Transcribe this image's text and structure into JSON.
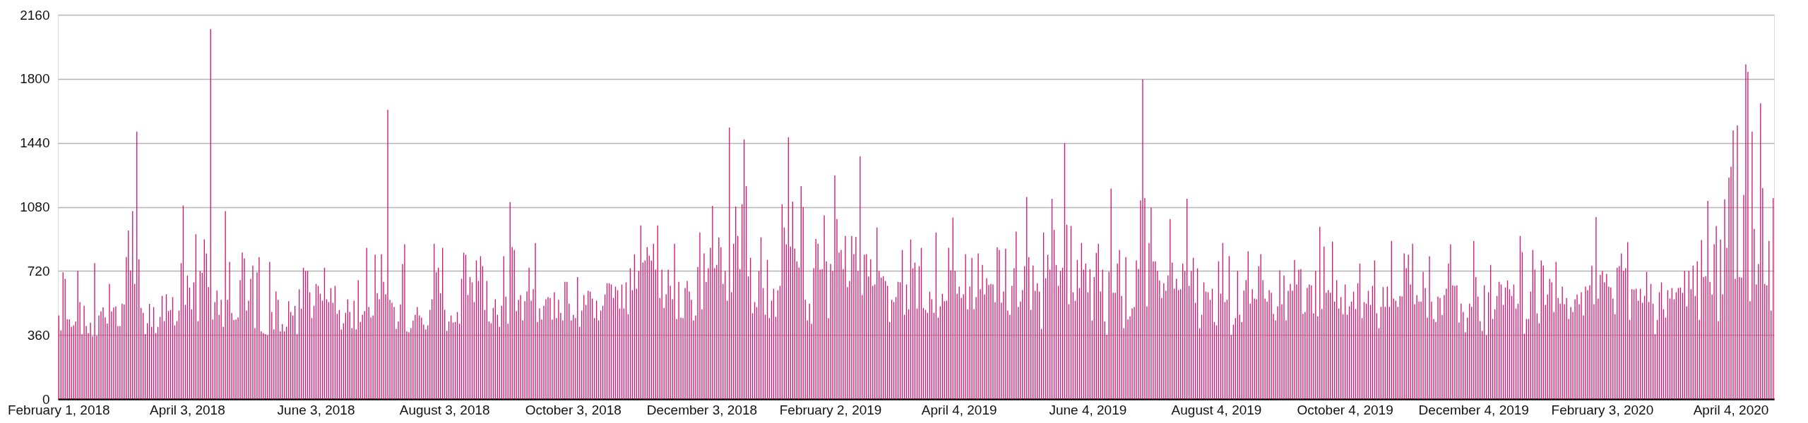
{
  "chart_data": {
    "type": "bar",
    "categories": [
      "February 1, 2018",
      null,
      null,
      null,
      null,
      null,
      null,
      null,
      null,
      null,
      null,
      null,
      null,
      null,
      null,
      null,
      null,
      null,
      null,
      null,
      null,
      null,
      null,
      null,
      null,
      null,
      null,
      null,
      null,
      null,
      null,
      null,
      null,
      null,
      null,
      null,
      null,
      null,
      null,
      null,
      null,
      null,
      null,
      null,
      null,
      null,
      null,
      null,
      null,
      null,
      null,
      null,
      null,
      null,
      null,
      null,
      null,
      null,
      null,
      null,
      null,
      "April 3, 2018",
      null,
      null,
      null,
      null,
      null,
      null,
      null,
      null,
      null,
      null,
      null,
      null,
      null,
      null,
      null,
      null,
      null,
      null,
      null,
      null,
      null,
      null,
      null,
      null,
      null,
      null,
      null,
      null,
      null,
      null,
      null,
      null,
      null,
      null,
      null,
      null,
      null,
      null,
      null,
      null,
      null,
      null,
      null,
      null,
      null,
      null,
      null,
      null,
      null,
      null,
      null,
      null,
      null,
      null,
      null,
      null,
      null,
      null,
      null,
      null,
      "June 3, 2018",
      null,
      null,
      null,
      null,
      null,
      null,
      null,
      null,
      null,
      null,
      null,
      null,
      null,
      null,
      null,
      null,
      null,
      null,
      null,
      null,
      null,
      null,
      null,
      null,
      null,
      null,
      null,
      null,
      null,
      null,
      null,
      null,
      null,
      null,
      null,
      null,
      null,
      null,
      null,
      null,
      null,
      null,
      null,
      null,
      null,
      null,
      null,
      null,
      null,
      null,
      null,
      null,
      null,
      null,
      null,
      null,
      null,
      null,
      null,
      null,
      "August 3, 2018",
      null,
      null,
      null,
      null,
      null,
      null,
      null,
      null,
      null,
      null,
      null,
      null,
      null,
      null,
      null,
      null,
      null,
      null,
      null,
      null,
      null,
      null,
      null,
      null,
      null,
      null,
      null,
      null,
      null,
      null,
      null,
      null,
      null,
      null,
      null,
      null,
      null,
      null,
      null,
      null,
      null,
      null,
      null,
      null,
      null,
      null,
      null,
      null,
      null,
      null,
      null,
      null,
      null,
      null,
      null,
      null,
      null,
      null,
      null,
      null,
      "October 3, 2018",
      null,
      null,
      null,
      null,
      null,
      null,
      null,
      null,
      null,
      null,
      null,
      null,
      null,
      null,
      null,
      null,
      null,
      null,
      null,
      null,
      null,
      null,
      null,
      null,
      null,
      null,
      null,
      null,
      null,
      null,
      null,
      null,
      null,
      null,
      null,
      null,
      null,
      null,
      null,
      null,
      null,
      null,
      null,
      null,
      null,
      null,
      null,
      null,
      null,
      null,
      null,
      null,
      null,
      null,
      null,
      null,
      null,
      null,
      null,
      null,
      "December 3, 2018",
      null,
      null,
      null,
      null,
      null,
      null,
      null,
      null,
      null,
      null,
      null,
      null,
      null,
      null,
      null,
      null,
      null,
      null,
      null,
      null,
      null,
      null,
      null,
      null,
      null,
      null,
      null,
      null,
      null,
      null,
      null,
      null,
      null,
      null,
      null,
      null,
      null,
      null,
      null,
      null,
      null,
      null,
      null,
      null,
      null,
      null,
      null,
      null,
      null,
      null,
      null,
      null,
      null,
      null,
      null,
      null,
      null,
      null,
      null,
      null,
      "February 2, 2019",
      null,
      null,
      null,
      null,
      null,
      null,
      null,
      null,
      null,
      null,
      null,
      null,
      null,
      null,
      null,
      null,
      null,
      null,
      null,
      null,
      null,
      null,
      null,
      null,
      null,
      null,
      null,
      null,
      null,
      null,
      null,
      null,
      null,
      null,
      null,
      null,
      null,
      null,
      null,
      null,
      null,
      null,
      null,
      null,
      null,
      null,
      null,
      null,
      null,
      null,
      null,
      null,
      null,
      null,
      null,
      null,
      null,
      null,
      null,
      null,
      "April 4, 2019",
      null,
      null,
      null,
      null,
      null,
      null,
      null,
      null,
      null,
      null,
      null,
      null,
      null,
      null,
      null,
      null,
      null,
      null,
      null,
      null,
      null,
      null,
      null,
      null,
      null,
      null,
      null,
      null,
      null,
      null,
      null,
      null,
      null,
      null,
      null,
      null,
      null,
      null,
      null,
      null,
      null,
      null,
      null,
      null,
      null,
      null,
      null,
      null,
      null,
      null,
      null,
      null,
      null,
      null,
      null,
      null,
      null,
      null,
      null,
      null,
      "June 4, 2019",
      null,
      null,
      null,
      null,
      null,
      null,
      null,
      null,
      null,
      null,
      null,
      null,
      null,
      null,
      null,
      null,
      null,
      null,
      null,
      null,
      null,
      null,
      null,
      null,
      null,
      null,
      null,
      null,
      null,
      null,
      null,
      null,
      null,
      null,
      null,
      null,
      null,
      null,
      null,
      null,
      null,
      null,
      null,
      null,
      null,
      null,
      null,
      null,
      null,
      null,
      null,
      null,
      null,
      null,
      null,
      null,
      null,
      null,
      null,
      null,
      "August 4, 2019",
      null,
      null,
      null,
      null,
      null,
      null,
      null,
      null,
      null,
      null,
      null,
      null,
      null,
      null,
      null,
      null,
      null,
      null,
      null,
      null,
      null,
      null,
      null,
      null,
      null,
      null,
      null,
      null,
      null,
      null,
      null,
      null,
      null,
      null,
      null,
      null,
      null,
      null,
      null,
      null,
      null,
      null,
      null,
      null,
      null,
      null,
      null,
      null,
      null,
      null,
      null,
      null,
      null,
      null,
      null,
      null,
      null,
      null,
      null,
      null,
      "October 4, 2019",
      null,
      null,
      null,
      null,
      null,
      null,
      null,
      null,
      null,
      null,
      null,
      null,
      null,
      null,
      null,
      null,
      null,
      null,
      null,
      null,
      null,
      null,
      null,
      null,
      null,
      null,
      null,
      null,
      null,
      null,
      null,
      null,
      null,
      null,
      null,
      null,
      null,
      null,
      null,
      null,
      null,
      null,
      null,
      null,
      null,
      null,
      null,
      null,
      null,
      null,
      null,
      null,
      null,
      null,
      null,
      null,
      null,
      null,
      null,
      null,
      "December 4, 2019",
      null,
      null,
      null,
      null,
      null,
      null,
      null,
      null,
      null,
      null,
      null,
      null,
      null,
      null,
      null,
      null,
      null,
      null,
      null,
      null,
      null,
      null,
      null,
      null,
      null,
      null,
      null,
      null,
      null,
      null,
      null,
      null,
      null,
      null,
      null,
      null,
      null,
      null,
      null,
      null,
      null,
      null,
      null,
      null,
      null,
      null,
      null,
      null,
      null,
      null,
      null,
      null,
      null,
      null,
      null,
      null,
      null,
      null,
      null,
      null,
      "February 3, 2020",
      null,
      null,
      null,
      null,
      null,
      null,
      null,
      null,
      null,
      null,
      null,
      null,
      null,
      null,
      null,
      null,
      null,
      null,
      null,
      null,
      null,
      null,
      null,
      null,
      null,
      null,
      null,
      null,
      null,
      null,
      null,
      null,
      null,
      null,
      null,
      null,
      null,
      null,
      null,
      null,
      null,
      null,
      null,
      null,
      null,
      null,
      null,
      null,
      null,
      null,
      null,
      null,
      null,
      null,
      null,
      null,
      null,
      null,
      null,
      null,
      "April 4, 2020",
      null,
      null,
      null,
      null,
      null,
      null,
      null,
      null,
      null,
      null,
      null,
      null,
      null,
      null,
      null,
      null,
      null,
      null,
      null,
      null
    ],
    "values": [
      470,
      386,
      712,
      676,
      448,
      448,
      406,
      414,
      436,
      720,
      545,
      364,
      524,
      410,
      371,
      429,
      353,
      764,
      356,
      470,
      492,
      515,
      459,
      424,
      647,
      492,
      514,
      520,
      410,
      410,
      536,
      532,
      798,
      947,
      723,
      1056,
      647,
      1503,
      786,
      512,
      485,
      365,
      426,
      535,
      406,
      517,
      371,
      406,
      462,
      580,
      438,
      589,
      495,
      501,
      573,
      414,
      438,
      497,
      764,
      1088,
      529,
      694,
      626,
      504,
      656,
      926,
      438,
      720,
      709,
      898,
      818,
      629,
      2080,
      447,
      545,
      609,
      474,
      558,
      406,
      1056,
      558,
      771,
      485,
      444,
      447,
      459,
      668,
      823,
      791,
      497,
      553,
      676,
      750,
      398,
      712,
      798,
      380,
      371,
      365,
      359,
      771,
      489,
      391,
      604,
      558,
      380,
      421,
      380,
      406,
      550,
      489,
      470,
      523,
      364,
      617,
      508,
      738,
      720,
      720,
      600,
      455,
      524,
      647,
      636,
      592,
      553,
      738,
      561,
      545,
      623,
      541,
      636,
      479,
      501,
      391,
      426,
      485,
      561,
      489,
      398,
      553,
      391,
      668,
      433,
      474,
      494,
      850,
      517,
      459,
      470,
      811,
      595,
      561,
      814,
      659,
      589,
      1626,
      558,
      541,
      517,
      394,
      436,
      532,
      759,
      870,
      380,
      376,
      398,
      441,
      474,
      517,
      470,
      458,
      418,
      391,
      414,
      501,
      561,
      873,
      712,
      738,
      595,
      850,
      501,
      383,
      436,
      470,
      430,
      433,
      489,
      423,
      676,
      823,
      811,
      585,
      686,
      656,
      545,
      779,
      664,
      803,
      747,
      501,
      664,
      436,
      426,
      512,
      561,
      474,
      406,
      524,
      803,
      576,
      423,
      1107,
      854,
      838,
      494,
      558,
      585,
      442,
      550,
      604,
      738,
      553,
      617,
      877,
      433,
      509,
      447,
      524,
      561,
      573,
      568,
      447,
      600,
      455,
      558,
      485,
      442,
      659,
      659,
      536,
      442,
      474,
      455,
      686,
      406,
      497,
      585,
      529,
      608,
      603,
      565,
      455,
      553,
      442,
      497,
      524,
      588,
      651,
      651,
      644,
      568,
      632,
      612,
      509,
      644,
      509,
      656,
      477,
      735,
      612,
      814,
      620,
      720,
      976,
      767,
      779,
      854,
      806,
      779,
      873,
      727,
      976,
      568,
      727,
      512,
      589,
      727,
      636,
      561,
      873,
      450,
      659,
      458,
      455,
      624,
      664,
      604,
      558,
      442,
      470,
      742,
      936,
      504,
      818,
      659,
      735,
      850,
      1086,
      735,
      754,
      909,
      853,
      647,
      720,
      553,
      1526,
      600,
      873,
      1082,
      917,
      730,
      1095,
      1459,
      1197,
      689,
      794,
      482,
      545,
      517,
      720,
      909,
      624,
      474,
      782,
      455,
      553,
      620,
      462,
      612,
      636,
      1095,
      964,
      870,
      1471,
      857,
      1110,
      845,
      774,
      739,
      1197,
      1079,
      558,
      442,
      536,
      423,
      735,
      900,
      873,
      727,
      730,
      1032,
      774,
      455,
      759,
      720,
      1257,
      1012,
      823,
      838,
      730,
      917,
      629,
      664,
      917,
      814,
      912,
      720,
      1364,
      585,
      811,
      814,
      689,
      786,
      636,
      644,
      964,
      720,
      683,
      691,
      664,
      636,
      433,
      558,
      545,
      573,
      659,
      656,
      838,
      474,
      644,
      504,
      897,
      735,
      767,
      509,
      747,
      850,
      512,
      501,
      485,
      604,
      561,
      485,
      936,
      458,
      521,
      592,
      550,
      553,
      850,
      723,
      1020,
      720,
      592,
      632,
      568,
      589,
      814,
      504,
      632,
      794,
      504,
      573,
      818,
      617,
      754,
      588,
      679,
      641,
      647,
      644,
      544,
      853,
      838,
      541,
      604,
      845,
      497,
      474,
      636,
      735,
      941,
      517,
      548,
      612,
      747,
      1135,
      798,
      501,
      750,
      608,
      651,
      604,
      394,
      936,
      679,
      811,
      727,
      1126,
      951,
      754,
      636,
      720,
      738,
      1439,
      980,
      533,
      973,
      600,
      553,
      782,
      624,
      877,
      727,
      762,
      600,
      730,
      441,
      686,
      821,
      873,
      604,
      727,
      436,
      361,
      715,
      1183,
      597,
      597,
      762,
      838,
      580,
      398,
      798,
      447,
      465,
      509,
      517,
      779,
      730,
      1117,
      1797,
      1130,
      521,
      877,
      1076,
      774,
      774,
      720,
      667,
      568,
      651,
      608,
      695,
      1012,
      767,
      620,
      676,
      612,
      617,
      762,
      720,
      1126,
      636,
      720,
      794,
      541,
      735,
      398,
      474,
      656,
      604,
      600,
      558,
      620,
      433,
      414,
      774,
      592,
      877,
      545,
      558,
      803,
      361,
      418,
      455,
      720,
      474,
      433,
      609,
      668,
      830,
      536,
      617,
      565,
      561,
      747,
      814,
      668,
      565,
      548,
      612,
      597,
      479,
      442,
      521,
      723,
      533,
      695,
      442,
      608,
      647,
      609,
      782,
      644,
      727,
      730,
      479,
      489,
      624,
      644,
      639,
      482,
      720,
      465,
      968,
      506,
      857,
      597,
      612,
      597,
      885,
      548,
      668,
      509,
      573,
      477,
      644,
      474,
      521,
      548,
      604,
      506,
      651,
      762,
      455,
      545,
      536,
      608,
      529,
      636,
      779,
      482,
      398,
      518,
      629,
      518,
      632,
      518,
      889,
      565,
      553,
      518,
      580,
      577,
      818,
      735,
      811,
      644,
      873,
      533,
      585,
      548,
      548,
      715,
      624,
      458,
      803,
      548,
      450,
      433,
      576,
      568,
      473,
      585,
      620,
      762,
      870,
      639,
      636,
      639,
      430,
      536,
      489,
      376,
      458,
      536,
      518,
      889,
      686,
      576,
      438,
      383,
      639,
      358,
      600,
      754,
      450,
      504,
      580,
      659,
      644,
      529,
      627,
      667,
      617,
      580,
      644,
      509,
      536,
      917,
      826,
      367,
      450,
      450,
      604,
      838,
      727,
      482,
      426,
      779,
      750,
      529,
      588,
      676,
      656,
      489,
      771,
      568,
      536,
      632,
      533,
      568,
      450,
      517,
      489,
      561,
      588,
      533,
      600,
      470,
      632,
      612,
      639,
      750,
      533,
      1024,
      565,
      698,
      720,
      656,
      703,
      632,
      627,
      565,
      477,
      738,
      747,
      818,
      720,
      735,
      882,
      445,
      617,
      615,
      620,
      553,
      620,
      541,
      580,
      715,
      545,
      647,
      536,
      364,
      445,
      600,
      656,
      504,
      458,
      612,
      565,
      624,
      561,
      600,
      624,
      627,
      597,
      720,
      521,
      720,
      617,
      750,
      580,
      774,
      445,
      894,
      686,
      691,
      1114,
      659,
      588,
      870,
      973,
      438,
      897,
      589,
      1123,
      850,
      1245,
      1306,
      1510,
      676,
      1538,
      686,
      683,
      1147,
      1882,
      1839,
      550,
      1503,
      956,
      644,
      759,
      1663,
      1186,
      647,
      639,
      889,
      497,
      1130
    ],
    "color": "#d1176f",
    "ylim": [
      0,
      2160
    ],
    "yticks": [
      0,
      360,
      720,
      1080,
      1440,
      1800,
      2160
    ],
    "grid": "y"
  }
}
